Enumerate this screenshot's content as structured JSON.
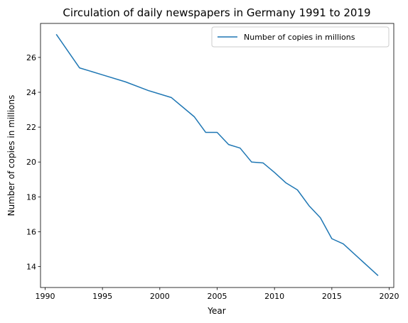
{
  "chart_data": {
    "type": "line",
    "title": "Circulation of daily newspapers in Germany 1991 to 2019",
    "xlabel": "Year",
    "ylabel": "Number of copies in millions",
    "xlim": [
      1989.6,
      2020.4
    ],
    "ylim": [
      12.8,
      27.95
    ],
    "xticks": [
      1990,
      1995,
      2000,
      2005,
      2010,
      2015,
      2020
    ],
    "yticks": [
      14,
      16,
      18,
      20,
      22,
      24,
      26
    ],
    "grid": false,
    "legend_position": "top-right",
    "series": [
      {
        "name": "Number of copies in millions",
        "color": "#1f77b4",
        "x": [
          1991,
          1993,
          1995,
          1997,
          1999,
          2001,
          2003,
          2004,
          2005,
          2006,
          2007,
          2008,
          2009,
          2010,
          2011,
          2012,
          2013,
          2014,
          2015,
          2016,
          2019
        ],
        "y": [
          27.3,
          25.4,
          25.0,
          24.6,
          24.1,
          23.7,
          22.6,
          21.7,
          21.7,
          21.0,
          20.8,
          20.0,
          19.95,
          19.4,
          18.8,
          18.4,
          17.5,
          16.8,
          15.6,
          15.3,
          13.5
        ]
      }
    ]
  }
}
